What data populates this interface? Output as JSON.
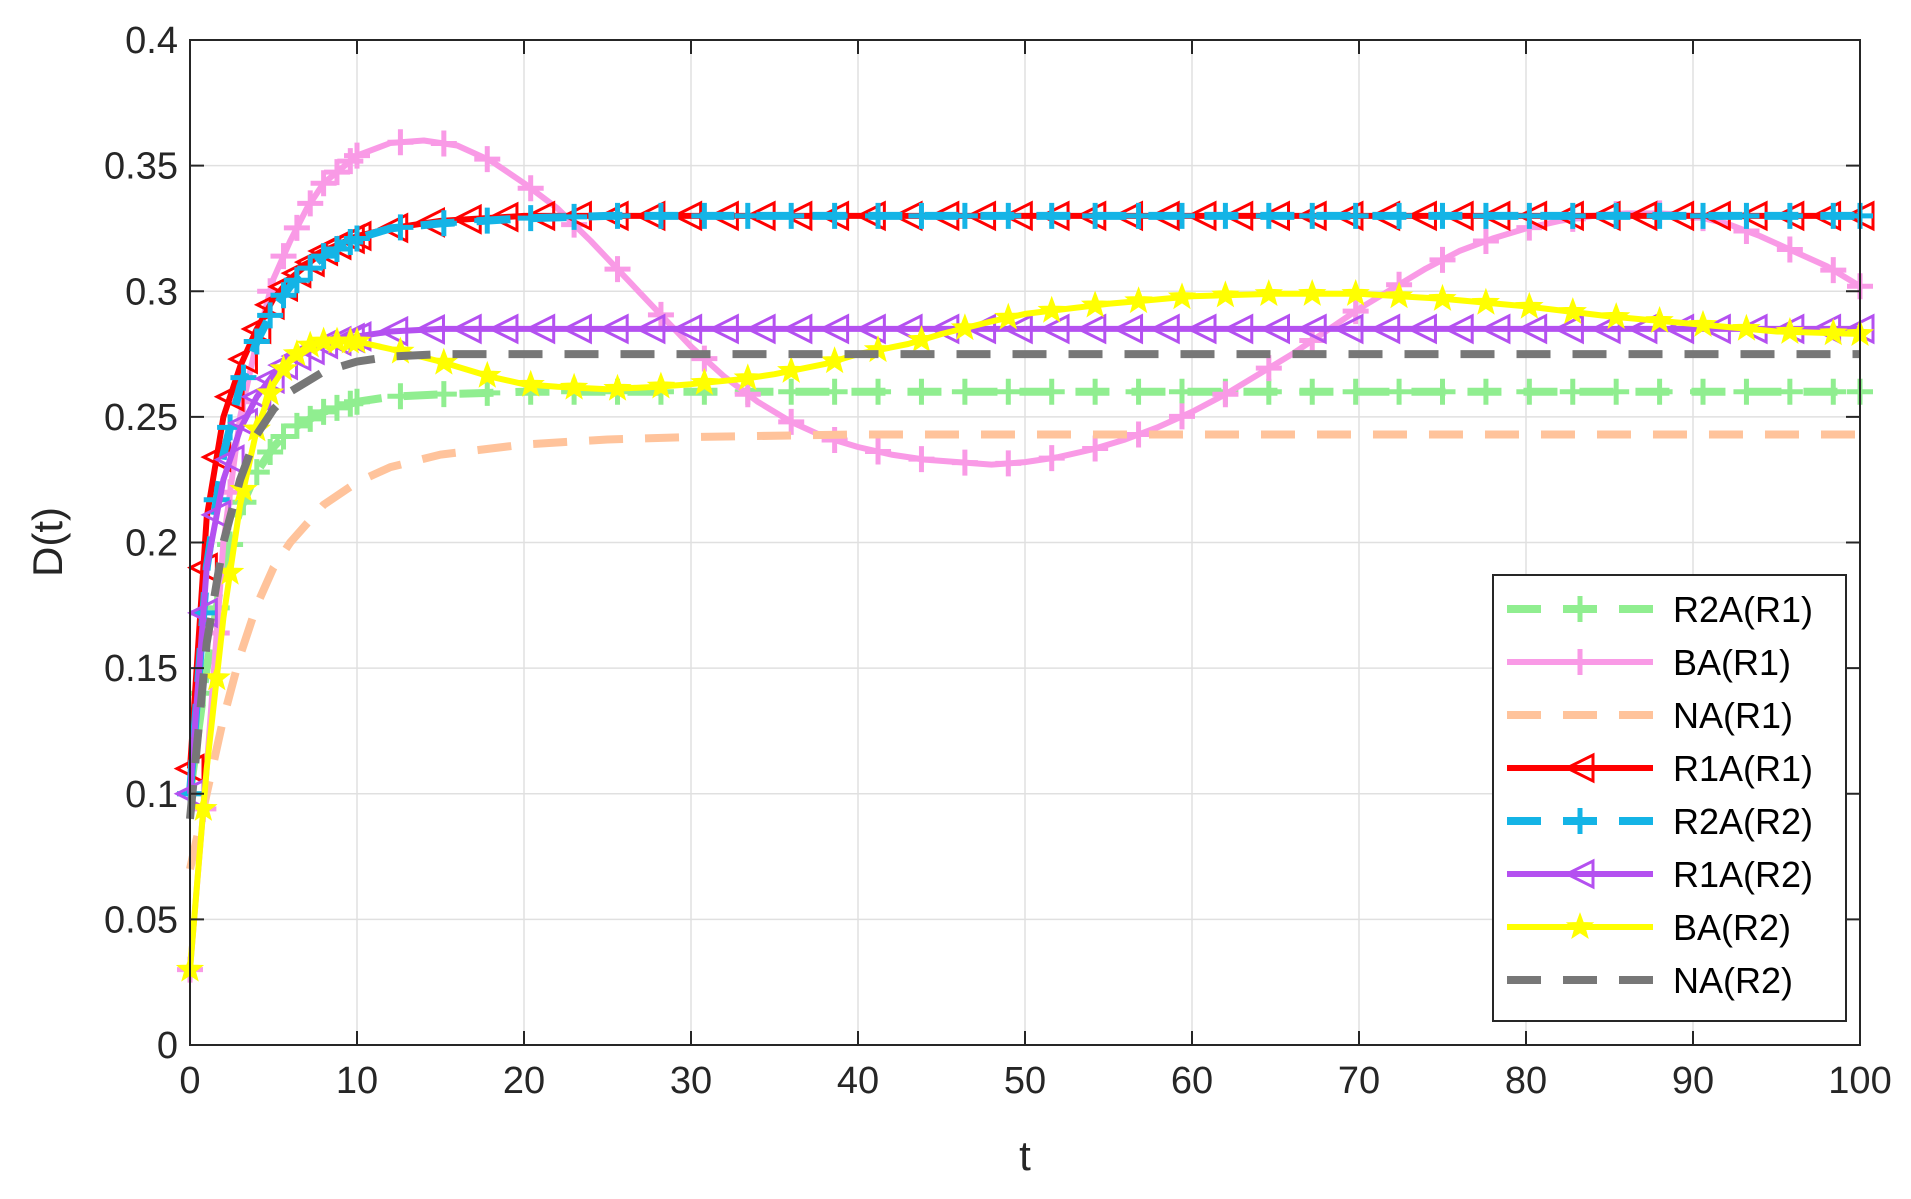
{
  "chart_data": {
    "type": "line",
    "xlabel": "t",
    "ylabel": "D(t)",
    "xlim": [
      0,
      100
    ],
    "ylim": [
      0,
      0.4
    ],
    "xticks": [
      "0",
      "10",
      "20",
      "30",
      "40",
      "50",
      "60",
      "70",
      "80",
      "90",
      "100"
    ],
    "yticks": [
      "0",
      "0.05",
      "0.1",
      "0.15",
      "0.2",
      "0.25",
      "0.3",
      "0.35",
      "0.4"
    ],
    "grid": true,
    "legend_position": "bottom-right",
    "series": [
      {
        "name": "R2A(R1)",
        "color": "#90ee90",
        "dash": "dashed",
        "marker": "plus",
        "x": [
          0,
          1,
          2,
          3,
          4,
          5,
          6,
          8,
          10,
          12,
          15,
          20,
          25,
          30,
          40,
          50,
          60,
          70,
          80,
          90,
          100
        ],
        "y": [
          0.1,
          0.15,
          0.19,
          0.213,
          0.228,
          0.238,
          0.245,
          0.252,
          0.256,
          0.258,
          0.259,
          0.26,
          0.26,
          0.26,
          0.26,
          0.26,
          0.26,
          0.26,
          0.26,
          0.26,
          0.26
        ]
      },
      {
        "name": "BA(R1)",
        "color": "#f99ae6",
        "dash": "solid",
        "marker": "plus",
        "x": [
          0,
          1,
          2,
          3,
          4,
          5,
          6,
          7,
          8,
          10,
          12,
          14,
          16,
          18,
          20,
          22,
          24,
          26,
          28,
          30,
          32,
          34,
          36,
          38,
          40,
          42,
          44,
          46,
          48,
          50,
          52,
          54,
          56,
          58,
          60,
          62,
          64,
          66,
          68,
          70,
          72,
          74,
          76,
          78,
          80,
          82,
          84,
          86,
          88,
          90,
          92,
          94,
          96,
          98,
          100
        ],
        "y": [
          0.03,
          0.11,
          0.2,
          0.25,
          0.28,
          0.305,
          0.32,
          0.333,
          0.343,
          0.354,
          0.359,
          0.36,
          0.358,
          0.352,
          0.343,
          0.333,
          0.32,
          0.306,
          0.292,
          0.278,
          0.266,
          0.256,
          0.248,
          0.242,
          0.238,
          0.235,
          0.233,
          0.232,
          0.231,
          0.232,
          0.234,
          0.237,
          0.241,
          0.246,
          0.252,
          0.259,
          0.267,
          0.275,
          0.284,
          0.293,
          0.301,
          0.309,
          0.316,
          0.321,
          0.325,
          0.328,
          0.33,
          0.331,
          0.331,
          0.33,
          0.327,
          0.322,
          0.316,
          0.31,
          0.302
        ]
      },
      {
        "name": "NA(R1)",
        "color": "#ffc39b",
        "dash": "dashed",
        "marker": "none",
        "x": [
          0,
          1,
          2,
          3,
          4,
          5,
          6,
          8,
          10,
          12,
          15,
          20,
          25,
          30,
          40,
          50,
          60,
          70,
          80,
          90,
          100
        ],
        "y": [
          0.07,
          0.1,
          0.13,
          0.155,
          0.175,
          0.19,
          0.2,
          0.215,
          0.224,
          0.23,
          0.235,
          0.239,
          0.241,
          0.242,
          0.243,
          0.243,
          0.243,
          0.243,
          0.243,
          0.243,
          0.243
        ]
      },
      {
        "name": "R1A(R1)",
        "color": "#ff0000",
        "dash": "solid",
        "marker": "triangle-left",
        "x": [
          0,
          1,
          2,
          3,
          4,
          5,
          6,
          8,
          10,
          12,
          15,
          20,
          25,
          30,
          40,
          50,
          60,
          70,
          80,
          90,
          100
        ],
        "y": [
          0.11,
          0.21,
          0.25,
          0.27,
          0.285,
          0.297,
          0.305,
          0.316,
          0.322,
          0.325,
          0.328,
          0.33,
          0.33,
          0.33,
          0.33,
          0.33,
          0.33,
          0.33,
          0.33,
          0.33,
          0.33
        ]
      },
      {
        "name": "R2A(R2)",
        "color": "#14b4e6",
        "dash": "dashed",
        "marker": "plus",
        "x": [
          0,
          1,
          2,
          3,
          4,
          5,
          6,
          8,
          10,
          12,
          15,
          20,
          25,
          30,
          40,
          50,
          60,
          70,
          80,
          90,
          100
        ],
        "y": [
          0.1,
          0.19,
          0.235,
          0.262,
          0.28,
          0.293,
          0.302,
          0.314,
          0.321,
          0.325,
          0.327,
          0.329,
          0.33,
          0.33,
          0.33,
          0.33,
          0.33,
          0.33,
          0.33,
          0.33,
          0.33
        ]
      },
      {
        "name": "R1A(R2)",
        "color": "#b450f0",
        "dash": "solid",
        "marker": "triangle-left",
        "x": [
          0,
          1,
          2,
          3,
          4,
          5,
          6,
          8,
          10,
          12,
          15,
          20,
          25,
          30,
          40,
          50,
          60,
          70,
          80,
          90,
          100
        ],
        "y": [
          0.1,
          0.19,
          0.225,
          0.245,
          0.258,
          0.267,
          0.273,
          0.279,
          0.282,
          0.284,
          0.285,
          0.285,
          0.285,
          0.285,
          0.285,
          0.285,
          0.285,
          0.285,
          0.285,
          0.285,
          0.285
        ]
      },
      {
        "name": "BA(R2)",
        "color": "#ffff00",
        "dash": "solid",
        "marker": "star",
        "x": [
          0,
          0.5,
          1,
          2,
          3,
          4,
          5,
          6,
          7,
          8,
          10,
          12,
          15,
          18,
          20,
          22,
          25,
          28,
          30,
          33,
          35,
          38,
          40,
          43,
          45,
          48,
          50,
          55,
          60,
          65,
          70,
          75,
          80,
          85,
          90,
          95,
          100
        ],
        "y": [
          0.03,
          0.07,
          0.11,
          0.17,
          0.215,
          0.245,
          0.263,
          0.273,
          0.278,
          0.28,
          0.28,
          0.277,
          0.272,
          0.266,
          0.263,
          0.262,
          0.261,
          0.262,
          0.263,
          0.265,
          0.267,
          0.271,
          0.275,
          0.279,
          0.283,
          0.288,
          0.291,
          0.295,
          0.298,
          0.299,
          0.299,
          0.297,
          0.294,
          0.29,
          0.287,
          0.284,
          0.283
        ]
      },
      {
        "name": "NA(R2)",
        "color": "#777777",
        "dash": "dashed",
        "marker": "none",
        "x": [
          0,
          1,
          2,
          3,
          4,
          5,
          6,
          8,
          10,
          12,
          15,
          20,
          25,
          30,
          40,
          50,
          60,
          70,
          80,
          90,
          100
        ],
        "y": [
          0.09,
          0.16,
          0.2,
          0.225,
          0.243,
          0.253,
          0.26,
          0.268,
          0.272,
          0.274,
          0.275,
          0.275,
          0.275,
          0.275,
          0.275,
          0.275,
          0.275,
          0.275,
          0.275,
          0.275,
          0.275
        ]
      }
    ]
  }
}
